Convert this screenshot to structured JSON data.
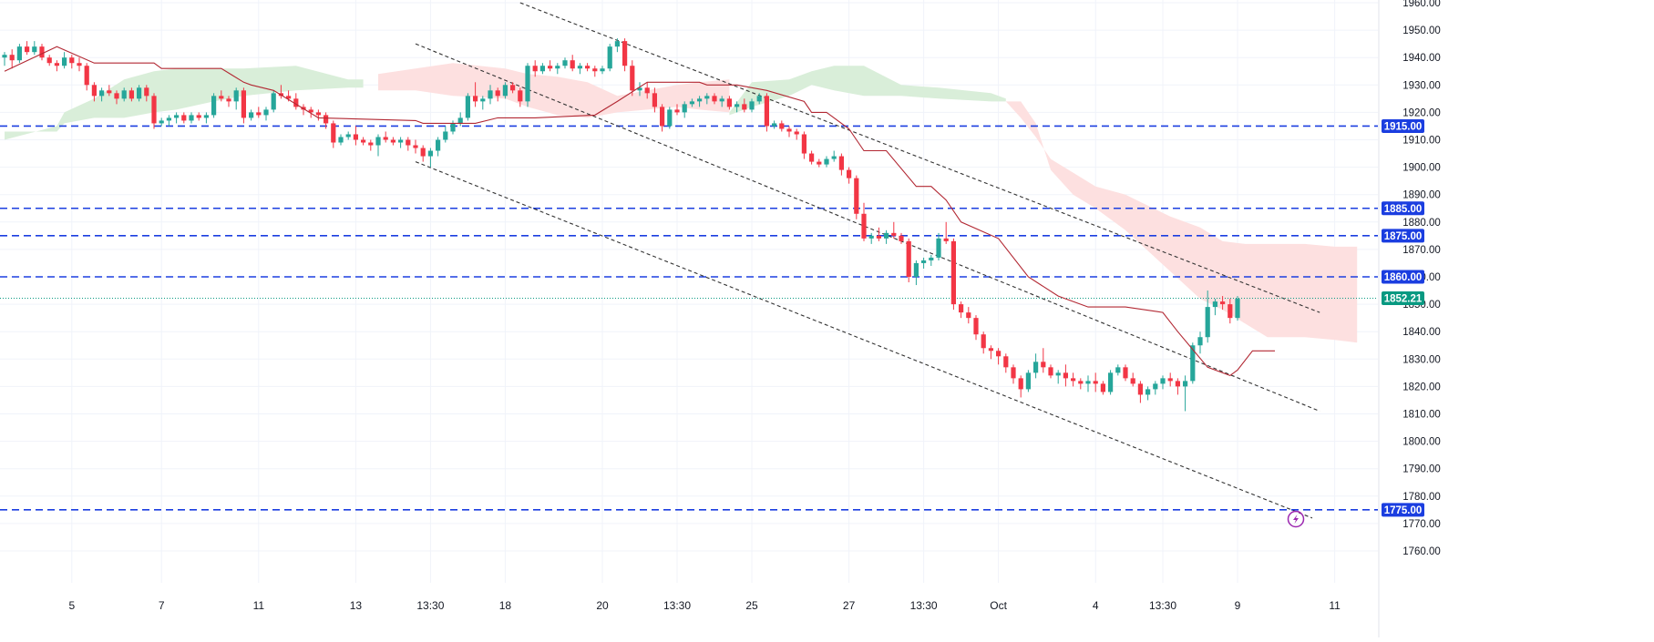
{
  "chart_data": {
    "type": "candlestick",
    "title": "",
    "xlabel": "",
    "ylabel": "",
    "ylim": [
      1755,
      1960
    ],
    "y_ticks": [
      1760,
      1770,
      1780,
      1790,
      1800,
      1810,
      1820,
      1830,
      1840,
      1850,
      1860,
      1870,
      1880,
      1890,
      1900,
      1910,
      1920,
      1930,
      1940,
      1950,
      1960
    ],
    "x_ticks": [
      "5",
      "7",
      "11",
      "13",
      "13:30",
      "18",
      "20",
      "13:30",
      "25",
      "27",
      "13:30",
      "Oct",
      "4",
      "13:30",
      "9",
      "11"
    ],
    "x_tick_bars": [
      9,
      21,
      34,
      47,
      57,
      67,
      80,
      90,
      100,
      113,
      123,
      133,
      146,
      155,
      165,
      178
    ],
    "grid": true,
    "colors": {
      "up": "#26a69a",
      "down": "#f23645",
      "base_line": "#b22833",
      "cloud_bull": "#d9eed9",
      "cloud_bear": "#fde0e0",
      "level": "#1b3ee0",
      "current": "#089981",
      "channel": "#333333"
    },
    "last_price": "1852.21",
    "candles": [
      [
        1940,
        1942,
        1937,
        1941
      ],
      [
        1941,
        1943,
        1936,
        1939
      ],
      [
        1939,
        1945,
        1938,
        1944
      ],
      [
        1944,
        1946,
        1941,
        1942
      ],
      [
        1942,
        1946,
        1941,
        1944
      ],
      [
        1944,
        1945,
        1939,
        1940
      ],
      [
        1940,
        1941,
        1937,
        1938
      ],
      [
        1938,
        1939,
        1935,
        1937
      ],
      [
        1937,
        1942,
        1936,
        1940
      ],
      [
        1940,
        1941,
        1936,
        1938
      ],
      [
        1938,
        1940,
        1935,
        1937
      ],
      [
        1937,
        1938,
        1928,
        1930
      ],
      [
        1930,
        1931,
        1924,
        1926
      ],
      [
        1926,
        1929,
        1924,
        1928
      ],
      [
        1928,
        1930,
        1926,
        1927
      ],
      [
        1927,
        1928,
        1923,
        1925
      ],
      [
        1925,
        1929,
        1924,
        1928
      ],
      [
        1928,
        1929,
        1924,
        1925
      ],
      [
        1925,
        1930,
        1924,
        1929
      ],
      [
        1929,
        1930,
        1924,
        1926
      ],
      [
        1926,
        1927,
        1914,
        1916
      ],
      [
        1916,
        1918,
        1915,
        1917
      ],
      [
        1917,
        1919,
        1915,
        1918
      ],
      [
        1918,
        1920,
        1916,
        1919
      ],
      [
        1919,
        1920,
        1916,
        1917
      ],
      [
        1917,
        1920,
        1916,
        1919
      ],
      [
        1919,
        1920,
        1917,
        1918
      ],
      [
        1918,
        1920,
        1916,
        1919
      ],
      [
        1919,
        1927,
        1918,
        1926
      ],
      [
        1926,
        1928,
        1924,
        1925
      ],
      [
        1925,
        1926,
        1922,
        1924
      ],
      [
        1924,
        1929,
        1921,
        1928
      ],
      [
        1928,
        1929,
        1916,
        1918
      ],
      [
        1918,
        1921,
        1917,
        1920
      ],
      [
        1920,
        1922,
        1918,
        1919
      ],
      [
        1919,
        1922,
        1917,
        1921
      ],
      [
        1921,
        1928,
        1920,
        1927
      ],
      [
        1927,
        1930,
        1925,
        1926
      ],
      [
        1926,
        1928,
        1924,
        1925
      ],
      [
        1925,
        1927,
        1921,
        1922
      ],
      [
        1922,
        1923,
        1919,
        1921
      ],
      [
        1921,
        1922,
        1918,
        1920
      ],
      [
        1920,
        1921,
        1917,
        1919
      ],
      [
        1919,
        1920,
        1914,
        1916
      ],
      [
        1916,
        1917,
        1907,
        1909
      ],
      [
        1909,
        1912,
        1908,
        1911
      ],
      [
        1911,
        1913,
        1910,
        1912
      ],
      [
        1912,
        1915,
        1908,
        1910
      ],
      [
        1910,
        1911,
        1908,
        1909
      ],
      [
        1909,
        1910,
        1906,
        1908
      ],
      [
        1908,
        1912,
        1904,
        1911
      ],
      [
        1911,
        1913,
        1909,
        1910
      ],
      [
        1910,
        1911,
        1908,
        1909
      ],
      [
        1909,
        1911,
        1907,
        1910
      ],
      [
        1910,
        1911,
        1906,
        1908
      ],
      [
        1908,
        1910,
        1905,
        1907
      ],
      [
        1907,
        1908,
        1902,
        1904
      ],
      [
        1904,
        1907,
        1900,
        1906
      ],
      [
        1906,
        1911,
        1904,
        1910
      ],
      [
        1910,
        1915,
        1909,
        1913
      ],
      [
        1913,
        1917,
        1912,
        1916
      ],
      [
        1916,
        1920,
        1915,
        1918
      ],
      [
        1918,
        1927,
        1917,
        1926
      ],
      [
        1926,
        1931,
        1922,
        1924
      ],
      [
        1924,
        1926,
        1921,
        1925
      ],
      [
        1925,
        1930,
        1923,
        1928
      ],
      [
        1928,
        1929,
        1924,
        1926
      ],
      [
        1926,
        1931,
        1925,
        1930
      ],
      [
        1930,
        1931,
        1927,
        1928
      ],
      [
        1928,
        1929,
        1922,
        1924
      ],
      [
        1924,
        1938,
        1922,
        1937
      ],
      [
        1937,
        1939,
        1933,
        1935
      ],
      [
        1935,
        1938,
        1934,
        1937
      ],
      [
        1937,
        1939,
        1935,
        1936
      ],
      [
        1936,
        1938,
        1934,
        1937
      ],
      [
        1937,
        1940,
        1936,
        1939
      ],
      [
        1939,
        1941,
        1935,
        1936
      ],
      [
        1936,
        1938,
        1934,
        1937
      ],
      [
        1937,
        1938,
        1935,
        1936
      ],
      [
        1936,
        1937,
        1933,
        1935
      ],
      [
        1935,
        1937,
        1934,
        1936
      ],
      [
        1936,
        1945,
        1935,
        1944
      ],
      [
        1944,
        1947,
        1942,
        1946
      ],
      [
        1946,
        1947,
        1935,
        1937
      ],
      [
        1937,
        1939,
        1926,
        1928
      ],
      [
        1928,
        1931,
        1926,
        1929
      ],
      [
        1929,
        1931,
        1925,
        1927
      ],
      [
        1927,
        1929,
        1920,
        1922
      ],
      [
        1922,
        1923,
        1913,
        1915
      ],
      [
        1915,
        1922,
        1914,
        1921
      ],
      [
        1921,
        1923,
        1919,
        1920
      ],
      [
        1920,
        1924,
        1918,
        1923
      ],
      [
        1923,
        1925,
        1922,
        1924
      ],
      [
        1924,
        1926,
        1922,
        1925
      ],
      [
        1925,
        1927,
        1923,
        1926
      ],
      [
        1926,
        1927,
        1923,
        1924
      ],
      [
        1924,
        1926,
        1922,
        1925
      ],
      [
        1925,
        1926,
        1921,
        1922
      ],
      [
        1922,
        1924,
        1920,
        1923
      ],
      [
        1923,
        1925,
        1920,
        1921
      ],
      [
        1921,
        1925,
        1920,
        1924
      ],
      [
        1924,
        1927,
        1923,
        1926
      ],
      [
        1926,
        1927,
        1913,
        1915
      ],
      [
        1915,
        1917,
        1914,
        1916
      ],
      [
        1916,
        1917,
        1913,
        1914
      ],
      [
        1914,
        1915,
        1911,
        1913
      ],
      [
        1913,
        1914,
        1910,
        1912
      ],
      [
        1912,
        1913,
        1903,
        1905
      ],
      [
        1905,
        1906,
        1901,
        1902
      ],
      [
        1902,
        1903,
        1900,
        1901
      ],
      [
        1901,
        1904,
        1900,
        1903
      ],
      [
        1903,
        1906,
        1902,
        1904
      ],
      [
        1904,
        1905,
        1897,
        1899
      ],
      [
        1899,
        1900,
        1894,
        1896
      ],
      [
        1896,
        1897,
        1881,
        1883
      ],
      [
        1883,
        1887,
        1873,
        1874
      ],
      [
        1874,
        1876,
        1872,
        1875
      ],
      [
        1875,
        1878,
        1873,
        1874
      ],
      [
        1874,
        1877,
        1872,
        1876
      ],
      [
        1876,
        1880,
        1874,
        1875
      ],
      [
        1875,
        1876,
        1872,
        1873
      ],
      [
        1873,
        1874,
        1858,
        1860
      ],
      [
        1860,
        1866,
        1857,
        1865
      ],
      [
        1865,
        1867,
        1863,
        1866
      ],
      [
        1866,
        1868,
        1864,
        1867
      ],
      [
        1867,
        1876,
        1866,
        1874
      ],
      [
        1874,
        1880,
        1872,
        1873
      ],
      [
        1873,
        1874,
        1848,
        1850
      ],
      [
        1850,
        1851,
        1845,
        1847
      ],
      [
        1847,
        1849,
        1843,
        1845
      ],
      [
        1845,
        1846,
        1837,
        1839
      ],
      [
        1839,
        1840,
        1832,
        1834
      ],
      [
        1834,
        1835,
        1830,
        1833
      ],
      [
        1833,
        1834,
        1828,
        1831
      ],
      [
        1831,
        1832,
        1825,
        1827
      ],
      [
        1827,
        1828,
        1821,
        1823
      ],
      [
        1823,
        1824,
        1816,
        1819
      ],
      [
        1819,
        1826,
        1818,
        1825
      ],
      [
        1825,
        1832,
        1823,
        1829
      ],
      [
        1829,
        1834,
        1825,
        1827
      ],
      [
        1827,
        1828,
        1823,
        1824
      ],
      [
        1824,
        1826,
        1821,
        1825
      ],
      [
        1825,
        1828,
        1820,
        1823
      ],
      [
        1823,
        1825,
        1820,
        1822
      ],
      [
        1822,
        1823,
        1819,
        1821
      ],
      [
        1821,
        1824,
        1818,
        1822
      ],
      [
        1822,
        1825,
        1818,
        1821
      ],
      [
        1821,
        1822,
        1817,
        1818
      ],
      [
        1818,
        1826,
        1817,
        1825
      ],
      [
        1825,
        1828,
        1824,
        1827
      ],
      [
        1827,
        1828,
        1822,
        1823
      ],
      [
        1823,
        1825,
        1820,
        1821
      ],
      [
        1821,
        1822,
        1814,
        1817
      ],
      [
        1817,
        1820,
        1815,
        1819
      ],
      [
        1819,
        1822,
        1817,
        1821
      ],
      [
        1821,
        1824,
        1819,
        1823
      ],
      [
        1823,
        1825,
        1820,
        1822
      ],
      [
        1822,
        1823,
        1817,
        1820
      ],
      [
        1820,
        1824,
        1811,
        1822
      ],
      [
        1822,
        1836,
        1821,
        1835
      ],
      [
        1835,
        1840,
        1832,
        1838
      ],
      [
        1838,
        1855,
        1836,
        1849
      ],
      [
        1849,
        1852,
        1846,
        1851
      ],
      [
        1851,
        1853,
        1848,
        1850
      ],
      [
        1850,
        1852,
        1843,
        1845
      ],
      [
        1845,
        1853,
        1844,
        1852
      ]
    ],
    "base_line": [
      [
        0,
        1935
      ],
      [
        7,
        1944
      ],
      [
        12,
        1938
      ],
      [
        20,
        1938
      ],
      [
        21,
        1936
      ],
      [
        25,
        1936
      ],
      [
        29,
        1936
      ],
      [
        32,
        1931
      ],
      [
        33,
        1930
      ],
      [
        36,
        1928
      ],
      [
        42,
        1918
      ],
      [
        55,
        1917
      ],
      [
        56,
        1916
      ],
      [
        63,
        1916
      ],
      [
        66,
        1918
      ],
      [
        71,
        1918
      ],
      [
        79,
        1919
      ],
      [
        82,
        1924
      ],
      [
        86,
        1931
      ],
      [
        93,
        1931
      ],
      [
        94,
        1930
      ],
      [
        98,
        1930
      ],
      [
        102,
        1928
      ],
      [
        107,
        1924
      ],
      [
        108,
        1920
      ],
      [
        110,
        1920
      ],
      [
        113,
        1914
      ],
      [
        115,
        1906
      ],
      [
        118,
        1906
      ],
      [
        122,
        1893
      ],
      [
        124,
        1893
      ],
      [
        126,
        1888
      ],
      [
        128,
        1880
      ],
      [
        133,
        1874
      ],
      [
        137,
        1860
      ],
      [
        141,
        1853
      ],
      [
        145,
        1849
      ],
      [
        150,
        1849
      ],
      [
        155,
        1847
      ],
      [
        157,
        1840
      ],
      [
        161,
        1827
      ],
      [
        164,
        1824
      ],
      [
        165,
        1826
      ],
      [
        167,
        1833
      ],
      [
        170,
        1833
      ]
    ],
    "cloud": [
      {
        "type": "bull",
        "points": [
          [
            0,
            1910,
            1913
          ],
          [
            7,
            1915,
            1913
          ],
          [
            8,
            1920,
            1916
          ],
          [
            12,
            1925,
            1918
          ],
          [
            16,
            1932,
            1918
          ],
          [
            20,
            1935,
            1920
          ],
          [
            23,
            1936,
            1921
          ],
          [
            28,
            1936,
            1924
          ],
          [
            32,
            1936,
            1926
          ],
          [
            39,
            1937,
            1928
          ],
          [
            46,
            1932,
            1929
          ],
          [
            48,
            1932,
            1929
          ]
        ]
      },
      {
        "type": "bear",
        "points": [
          [
            50,
            1928,
            1934
          ],
          [
            55,
            1928,
            1936
          ],
          [
            60,
            1926,
            1938
          ],
          [
            67,
            1925,
            1936
          ],
          [
            70,
            1922,
            1934
          ],
          [
            74,
            1919,
            1933
          ],
          [
            78,
            1918,
            1931
          ],
          [
            82,
            1920,
            1926
          ],
          [
            86,
            1921,
            1928
          ],
          [
            90,
            1922,
            1930
          ],
          [
            93,
            1921,
            1931
          ],
          [
            97,
            1920,
            1932
          ]
        ]
      },
      {
        "type": "bull",
        "points": [
          [
            97,
            1919,
            1920
          ],
          [
            100,
            1922,
            1931
          ],
          [
            105,
            1926,
            1932
          ],
          [
            108,
            1930,
            1935
          ],
          [
            111,
            1928,
            1937
          ],
          [
            115,
            1926,
            1937
          ],
          [
            120,
            1926,
            1930
          ],
          [
            125,
            1925,
            1929
          ],
          [
            132,
            1924,
            1927
          ],
          [
            134,
            1924,
            1925
          ]
        ]
      },
      {
        "type": "bear",
        "points": [
          [
            134,
            1924,
            1924
          ],
          [
            136,
            1924,
            1918
          ],
          [
            138,
            1916,
            1911
          ],
          [
            140,
            1899,
            1903
          ],
          [
            143,
            1890,
            1898
          ],
          [
            146,
            1885,
            1893
          ],
          [
            150,
            1877,
            1890
          ],
          [
            156,
            1862,
            1882
          ],
          [
            160,
            1852,
            1878
          ],
          [
            163,
            1848,
            1873
          ],
          [
            166,
            1843,
            1872
          ],
          [
            169,
            1838,
            1872
          ],
          [
            174,
            1838,
            1872
          ],
          [
            178,
            1837,
            1871
          ],
          [
            181,
            1836,
            1871
          ]
        ]
      }
    ],
    "levels": [
      1915,
      1885,
      1875,
      1860,
      1775
    ],
    "level_labels": [
      "1915.00",
      "1885.00",
      "1875.00",
      "1860.00",
      "1775.00"
    ],
    "channel_lines": [
      [
        [
          69,
          1960
        ],
        [
          176,
          1847
        ]
      ],
      [
        [
          55,
          1945
        ],
        [
          176,
          1811
        ]
      ],
      [
        [
          55,
          1902
        ],
        [
          175,
          1772
        ]
      ]
    ]
  }
}
